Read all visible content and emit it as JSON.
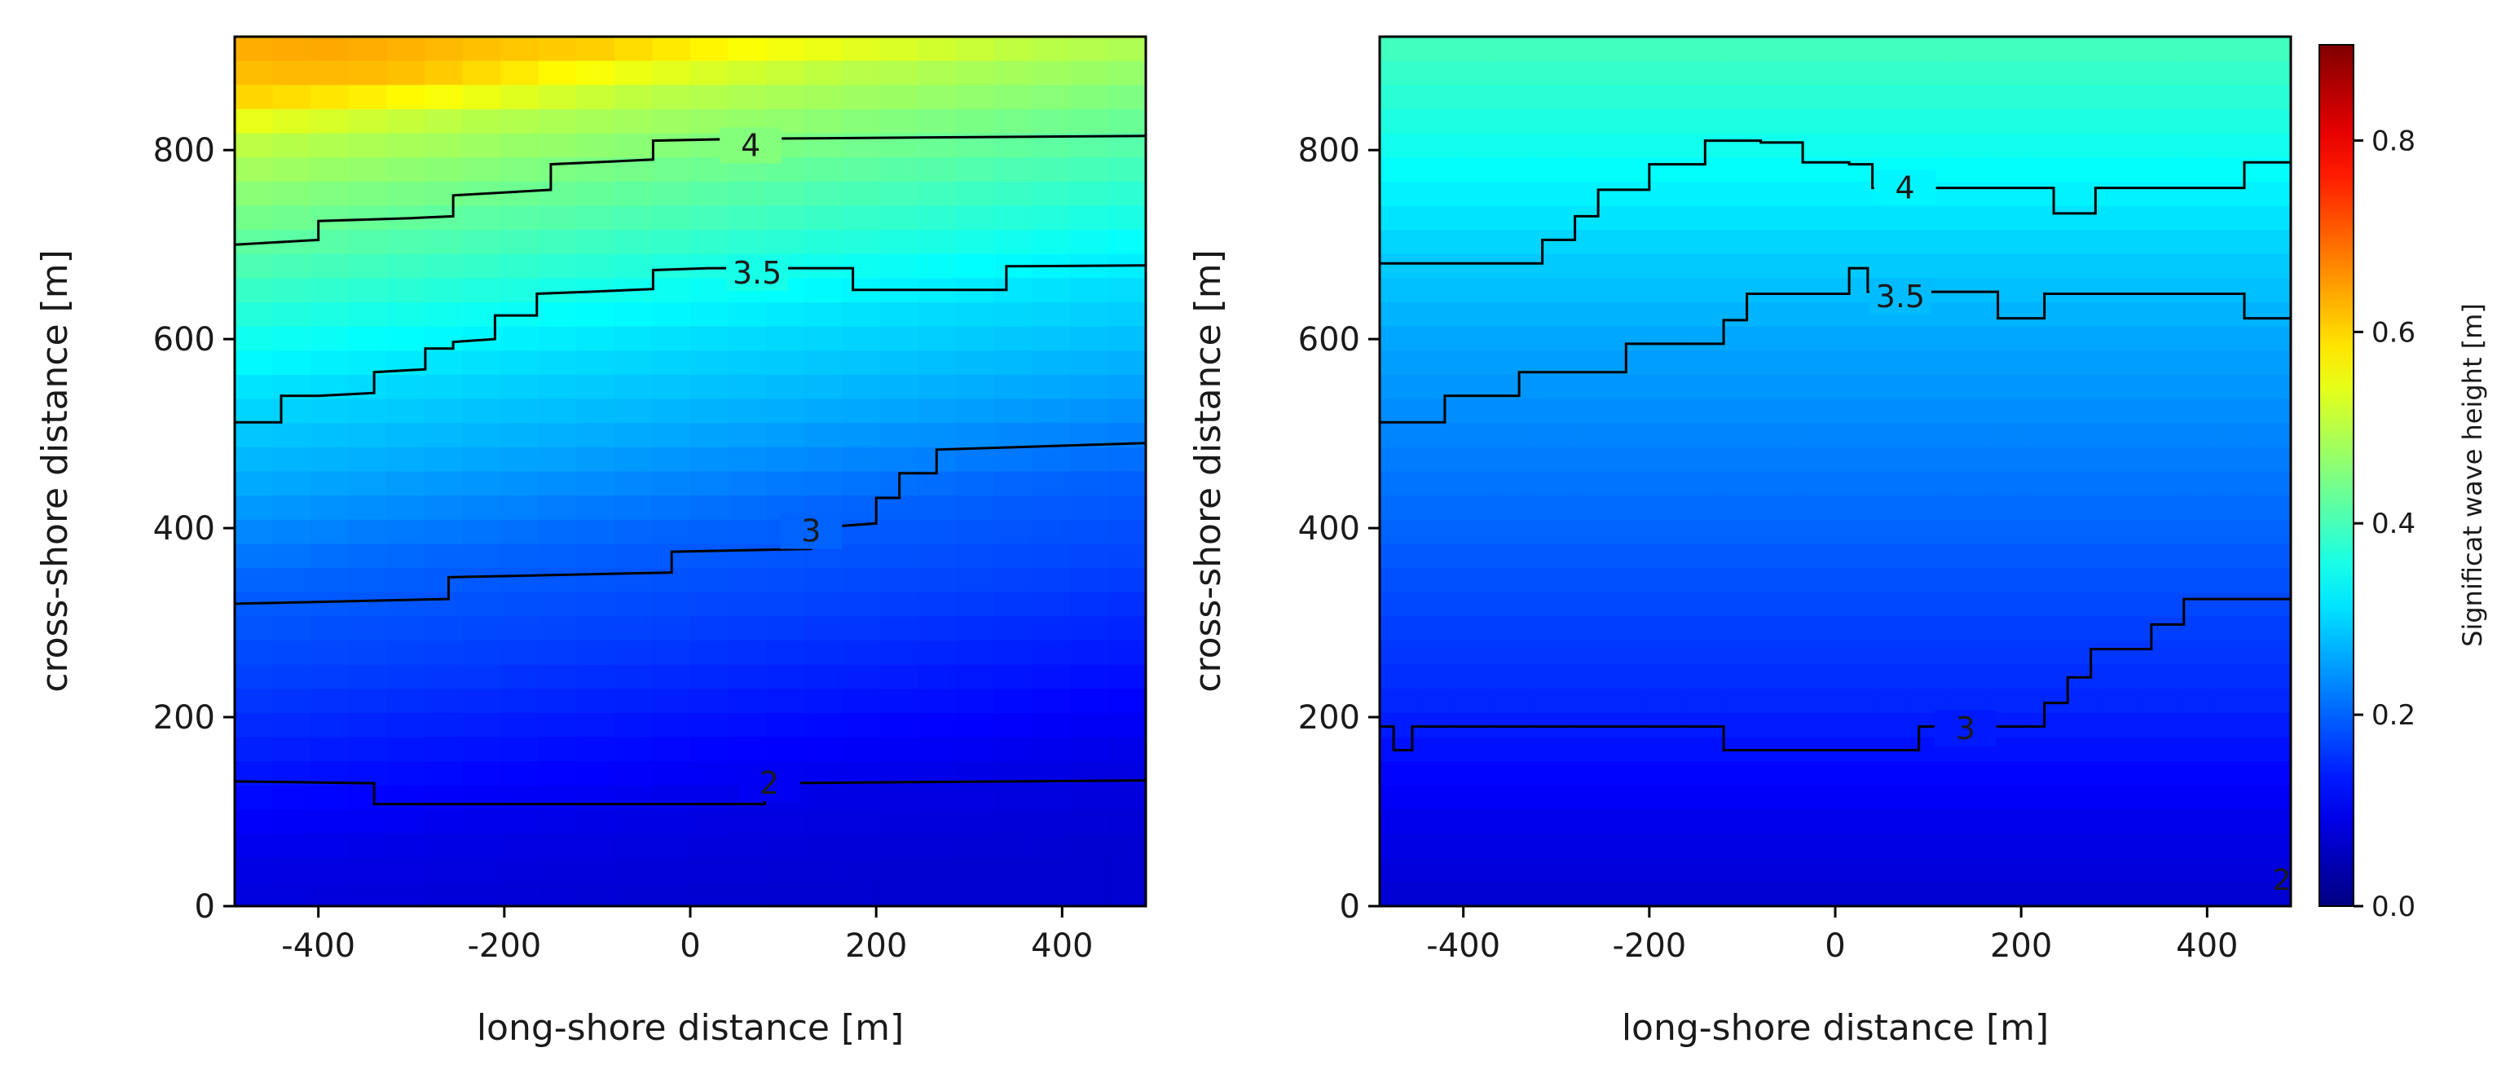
{
  "chart_data": [
    {
      "type": "heatmap",
      "panel": "left",
      "title": "",
      "xlabel": "long-shore distance [m]",
      "ylabel": "cross-shore distance [m]",
      "xlim": [
        -490,
        490
      ],
      "ylim": [
        0,
        920
      ],
      "xticks": [
        -400,
        -200,
        0,
        200,
        400
      ],
      "xtick_labels": [
        "-400",
        "-200",
        "0",
        "200",
        "400"
      ],
      "yticks": [
        0,
        200,
        400,
        600,
        800
      ],
      "ytick_labels": [
        "0",
        "200",
        "400",
        "600",
        "800"
      ],
      "field": {
        "y_profile": [
          [
            0,
            0.07
          ],
          [
            100,
            0.09
          ],
          [
            200,
            0.13
          ],
          [
            300,
            0.17
          ],
          [
            400,
            0.2
          ],
          [
            500,
            0.26
          ],
          [
            600,
            0.31
          ],
          [
            700,
            0.38
          ],
          [
            800,
            0.45
          ],
          [
            860,
            0.5
          ],
          [
            900,
            0.56
          ],
          [
            920,
            0.6
          ]
        ],
        "cross_tilt_m": 120,
        "peak_x": -400,
        "peak_value": 0.64
      },
      "contours": [
        {
          "level": "2",
          "label_at": [
            85,
            130
          ],
          "points": [
            [
              -490,
              132
            ],
            [
              -340,
              130
            ],
            [
              -340,
              108
            ],
            [
              80,
              108
            ],
            [
              80,
              130
            ],
            [
              490,
              133
            ]
          ]
        },
        {
          "level": "3",
          "label_at": [
            130,
            397
          ],
          "points": [
            [
              -490,
              320
            ],
            [
              -260,
              325
            ],
            [
              -260,
              348
            ],
            [
              -20,
              353
            ],
            [
              -20,
              375
            ],
            [
              130,
              378
            ],
            [
              130,
              400
            ],
            [
              200,
              405
            ],
            [
              200,
              432
            ],
            [
              225,
              432
            ],
            [
              225,
              458
            ],
            [
              265,
              458
            ],
            [
              265,
              483
            ],
            [
              490,
              490
            ],
            [
              490,
              512
            ]
          ]
        },
        {
          "level": "3.5",
          "label_at": [
            72,
            670
          ],
          "points": [
            [
              -490,
              512
            ],
            [
              -440,
              512
            ],
            [
              -440,
              540
            ],
            [
              -400,
              540
            ],
            [
              -340,
              543
            ],
            [
              -340,
              565
            ],
            [
              -285,
              568
            ],
            [
              -285,
              590
            ],
            [
              -255,
              590
            ],
            [
              -255,
              597
            ],
            [
              -210,
              600
            ],
            [
              -210,
              625
            ],
            [
              -165,
              625
            ],
            [
              -165,
              648
            ],
            [
              -110,
              650
            ],
            [
              -40,
              653
            ],
            [
              -40,
              673
            ],
            [
              20,
              675
            ],
            [
              175,
              675
            ],
            [
              175,
              652
            ],
            [
              340,
              652
            ],
            [
              340,
              677
            ],
            [
              490,
              678
            ]
          ]
        },
        {
          "level": "4",
          "label_at": [
            65,
            805
          ],
          "points": [
            [
              -490,
              700
            ],
            [
              -400,
              705
            ],
            [
              -400,
              725
            ],
            [
              -300,
              728
            ],
            [
              -255,
              730
            ],
            [
              -255,
              752
            ],
            [
              -150,
              758
            ],
            [
              -150,
              785
            ],
            [
              -40,
              790
            ],
            [
              -40,
              810
            ],
            [
              60,
              812
            ],
            [
              490,
              815
            ]
          ]
        }
      ]
    },
    {
      "type": "heatmap",
      "panel": "right",
      "title": "",
      "xlabel": "long-shore distance [m]",
      "ylabel": "cross-shore distance [m]",
      "xlim": [
        -490,
        490
      ],
      "ylim": [
        0,
        920
      ],
      "xticks": [
        -400,
        -200,
        0,
        200,
        400
      ],
      "xtick_labels": [
        "-400",
        "-200",
        "0",
        "200",
        "400"
      ],
      "yticks": [
        0,
        200,
        400,
        600,
        800
      ],
      "ytick_labels": [
        "0",
        "200",
        "400",
        "600",
        "800"
      ],
      "field": {
        "y_profile": [
          [
            0,
            0.07
          ],
          [
            100,
            0.1
          ],
          [
            200,
            0.14
          ],
          [
            300,
            0.17
          ],
          [
            400,
            0.2
          ],
          [
            500,
            0.23
          ],
          [
            600,
            0.26
          ],
          [
            700,
            0.3
          ],
          [
            800,
            0.35
          ],
          [
            920,
            0.4
          ]
        ],
        "cross_tilt_m": 0,
        "peak_x": 0,
        "peak_value": 0
      },
      "contours": [
        {
          "level": "3",
          "label_at": [
            140,
            188
          ],
          "points": [
            [
              -490,
              190
            ],
            [
              -475,
              190
            ],
            [
              -475,
              165
            ],
            [
              -455,
              165
            ],
            [
              -455,
              190
            ],
            [
              -120,
              190
            ],
            [
              -120,
              165
            ],
            [
              90,
              165
            ],
            [
              90,
              190
            ],
            [
              225,
              190
            ],
            [
              225,
              215
            ],
            [
              250,
              215
            ],
            [
              250,
              242
            ],
            [
              275,
              242
            ],
            [
              275,
              272
            ],
            [
              340,
              272
            ],
            [
              340,
              298
            ],
            [
              375,
              298
            ],
            [
              375,
              325
            ],
            [
              490,
              325
            ]
          ]
        },
        {
          "level": "3.5",
          "label_at": [
            70,
            645
          ],
          "points": [
            [
              -490,
              512
            ],
            [
              -420,
              512
            ],
            [
              -420,
              540
            ],
            [
              -340,
              540
            ],
            [
              -340,
              565
            ],
            [
              -225,
              565
            ],
            [
              -225,
              595
            ],
            [
              -120,
              595
            ],
            [
              -120,
              620
            ],
            [
              -95,
              620
            ],
            [
              -95,
              648
            ],
            [
              15,
              648
            ],
            [
              15,
              675
            ],
            [
              35,
              675
            ],
            [
              35,
              650
            ],
            [
              175,
              650
            ],
            [
              175,
              622
            ],
            [
              225,
              622
            ],
            [
              225,
              648
            ],
            [
              440,
              648
            ],
            [
              440,
              622
            ],
            [
              490,
              622
            ]
          ]
        },
        {
          "level": "4",
          "label_at": [
            75,
            760
          ],
          "points": [
            [
              -490,
              680
            ],
            [
              -315,
              680
            ],
            [
              -315,
              705
            ],
            [
              -280,
              705
            ],
            [
              -280,
              730
            ],
            [
              -255,
              730
            ],
            [
              -255,
              758
            ],
            [
              -200,
              758
            ],
            [
              -200,
              785
            ],
            [
              -140,
              785
            ],
            [
              -140,
              810
            ],
            [
              -80,
              810
            ],
            [
              -80,
              808
            ],
            [
              -35,
              808
            ],
            [
              -35,
              787
            ],
            [
              15,
              787
            ],
            [
              15,
              785
            ],
            [
              40,
              785
            ],
            [
              40,
              760
            ],
            [
              235,
              760
            ],
            [
              235,
              733
            ],
            [
              280,
              733
            ],
            [
              280,
              760
            ],
            [
              440,
              760
            ],
            [
              440,
              787
            ],
            [
              490,
              787
            ]
          ]
        }
      ],
      "corner_label": "2"
    }
  ],
  "colorbar": {
    "label": "Significat wave height [m]",
    "range": [
      0.0,
      0.9
    ],
    "ticks": [
      0.0,
      0.2,
      0.4,
      0.6,
      0.8
    ],
    "tick_labels": [
      "0.0",
      "0.2",
      "0.4",
      "0.6",
      "0.8"
    ],
    "colormap": "jet"
  }
}
